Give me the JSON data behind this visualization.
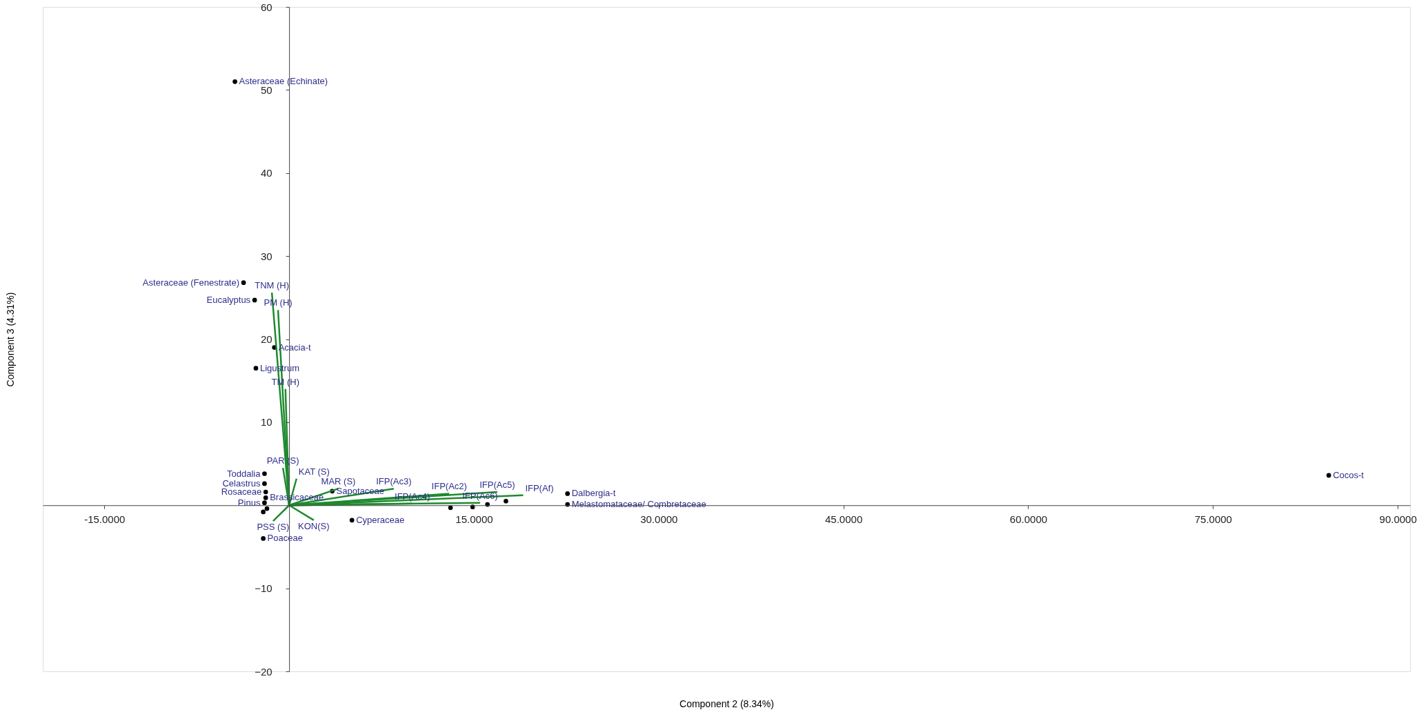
{
  "chart_data": {
    "type": "scatter",
    "xlabel": "Component 2  (8.34%)",
    "ylabel": "Component 3  (4.31%)",
    "xlim": [
      -20,
      91
    ],
    "ylim": [
      -20,
      60
    ],
    "xticks": [
      {
        "value": -15,
        "label": "-15.0000"
      },
      {
        "value": 15,
        "label": "15.0000"
      },
      {
        "value": 30,
        "label": "30.0000"
      },
      {
        "value": 45,
        "label": "45.0000"
      },
      {
        "value": 60,
        "label": "60.0000"
      },
      {
        "value": 75,
        "label": "75.0000"
      },
      {
        "value": 90,
        "label": "90.0000"
      }
    ],
    "yticks": [
      -20,
      -10,
      10,
      20,
      30,
      40,
      50,
      60
    ],
    "series": [
      {
        "color": "#000000",
        "marker": "circle",
        "x": [
          -4.4,
          -3.7,
          -2.8,
          -1.2,
          -2.7,
          -2.0,
          -2.0,
          -1.9,
          -1.9,
          -2.0,
          -2.1,
          3.5,
          5.1,
          22.6,
          22.6,
          84.4,
          -2.1,
          -1.8,
          13.1,
          14.9,
          16.1,
          17.6
        ],
        "values": [
          51.0,
          26.8,
          24.7,
          19.0,
          16.5,
          3.8,
          2.6,
          1.6,
          0.9,
          0.3,
          -4.0,
          1.7,
          -1.8,
          1.4,
          0.1,
          3.6,
          -0.8,
          -0.4,
          -0.3,
          -0.2,
          0.1,
          0.5
        ]
      },
      {
        "type": "line",
        "name": "TNM (H)",
        "color": "#1e8a2e",
        "x": [
          0,
          -1.4
        ],
        "values": [
          0,
          25.6
        ]
      },
      {
        "type": "line",
        "name": "PM (H)",
        "color": "#1e8a2e",
        "x": [
          0,
          -0.9
        ],
        "values": [
          0,
          23.5
        ]
      },
      {
        "type": "line",
        "name": "TM (H)",
        "color": "#1e8a2e",
        "x": [
          0,
          -0.3
        ],
        "values": [
          0,
          14.0
        ]
      },
      {
        "type": "line",
        "name": "PAR (S)",
        "color": "#1e8a2e",
        "x": [
          0,
          -0.5
        ],
        "values": [
          0,
          4.5
        ]
      },
      {
        "type": "line",
        "name": "KAT (S)",
        "color": "#1e8a2e",
        "x": [
          0,
          0.6
        ],
        "values": [
          0,
          3.2
        ]
      },
      {
        "type": "line",
        "name": "MAR (S)",
        "color": "#1e8a2e",
        "x": [
          0,
          4.0
        ],
        "values": [
          0,
          2.0
        ]
      },
      {
        "type": "line",
        "name": "IFP(Ac3)",
        "color": "#1e8a2e",
        "x": [
          0,
          8.5
        ],
        "values": [
          0,
          2.0
        ]
      },
      {
        "type": "line",
        "name": "IFP(Ac2)",
        "color": "#1e8a2e",
        "x": [
          0,
          13.0
        ],
        "values": [
          0,
          1.4
        ]
      },
      {
        "type": "line",
        "name": "IFP(Ac5)",
        "color": "#1e8a2e",
        "x": [
          0,
          16.9
        ],
        "values": [
          0,
          1.6
        ]
      },
      {
        "type": "line",
        "name": "IFP(Af)",
        "color": "#1e8a2e",
        "x": [
          0,
          19.0
        ],
        "values": [
          0,
          1.2
        ]
      },
      {
        "type": "line",
        "name": "IFP(Ac6)",
        "color": "#1e8a2e",
        "x": [
          0,
          15.5
        ],
        "values": [
          0,
          0.3
        ]
      },
      {
        "type": "line",
        "name": "IFP(Ac4)",
        "color": "#1e8a2e",
        "x": [
          0,
          10.0
        ],
        "values": [
          0,
          0.2
        ]
      },
      {
        "type": "line",
        "name": "KON(S)",
        "color": "#1e8a2e",
        "x": [
          0,
          2.0
        ],
        "values": [
          0,
          -1.8
        ]
      },
      {
        "type": "line",
        "name": "PSS (S)",
        "color": "#1e8a2e",
        "x": [
          0,
          -1.3
        ],
        "values": [
          0,
          -1.9
        ]
      }
    ],
    "annotations": [
      {
        "text": "Asteraceae (Echinate)",
        "x": -4.4,
        "y": 51.0
      },
      {
        "text": "Asteraceae (Fenestrate)",
        "x": -3.7,
        "y": 26.8
      },
      {
        "text": "Eucalyptus",
        "x": -2.8,
        "y": 24.7
      },
      {
        "text": "Acacia-t",
        "x": -1.2,
        "y": 19.0
      },
      {
        "text": "Ligustrum",
        "x": -2.7,
        "y": 16.5
      },
      {
        "text": "Toddalia",
        "x": -2.0,
        "y": 3.8
      },
      {
        "text": "Celastrus",
        "x": -2.0,
        "y": 2.6
      },
      {
        "text": "Rosaceae",
        "x": -1.9,
        "y": 1.6
      },
      {
        "text": "Brassicaceae",
        "x": -1.9,
        "y": 0.9
      },
      {
        "text": "Pinus",
        "x": -2.0,
        "y": 0.3
      },
      {
        "text": "Poaceae",
        "x": -2.1,
        "y": -4.0
      },
      {
        "text": "Sapotaceae",
        "x": 3.5,
        "y": 1.7
      },
      {
        "text": "Cyperaceae",
        "x": 5.1,
        "y": -1.8
      },
      {
        "text": "Dalbergia-t",
        "x": 22.6,
        "y": 1.4
      },
      {
        "text": "Melastomataceae/ Combretaceae",
        "x": 22.6,
        "y": 0.1
      },
      {
        "text": "Cocos-t",
        "x": 84.4,
        "y": 3.6
      }
    ]
  }
}
